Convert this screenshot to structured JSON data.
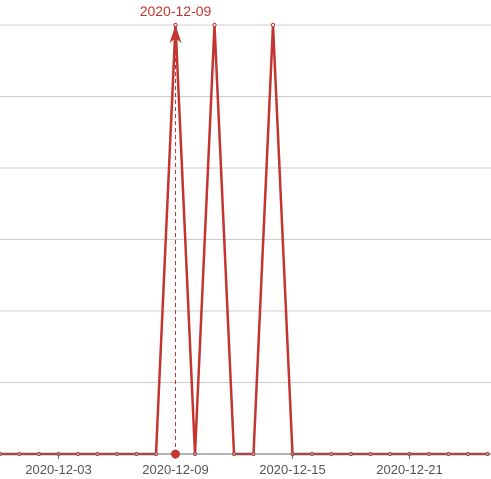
{
  "colors": {
    "series": "#c23531",
    "grid": "#cccccc",
    "axis": "#666666",
    "label": "#555555"
  },
  "chart_data": {
    "type": "line",
    "title": "",
    "xlabel": "",
    "ylabel": "",
    "grid": true,
    "x_ticks": [
      "2020-12-03",
      "2020-12-09",
      "2020-12-15",
      "2020-12-21"
    ],
    "x": [
      "2020-11-30",
      "2020-12-01",
      "2020-12-02",
      "2020-12-03",
      "2020-12-04",
      "2020-12-05",
      "2020-12-06",
      "2020-12-07",
      "2020-12-08",
      "2020-12-09",
      "2020-12-10",
      "2020-12-11",
      "2020-12-12",
      "2020-12-13",
      "2020-12-14",
      "2020-12-15",
      "2020-12-16",
      "2020-12-17",
      "2020-12-18",
      "2020-12-19",
      "2020-12-20",
      "2020-12-21",
      "2020-12-22",
      "2020-12-23",
      "2020-12-24",
      "2020-12-25"
    ],
    "series": [
      {
        "values": [
          0,
          0,
          0,
          0,
          0,
          0,
          0,
          0,
          0,
          1,
          0,
          1,
          0,
          0,
          1,
          0,
          0,
          0,
          0,
          0,
          0,
          0,
          0,
          0,
          0,
          0
        ]
      }
    ],
    "markLine": {
      "label": "2020-12-09"
    }
  }
}
